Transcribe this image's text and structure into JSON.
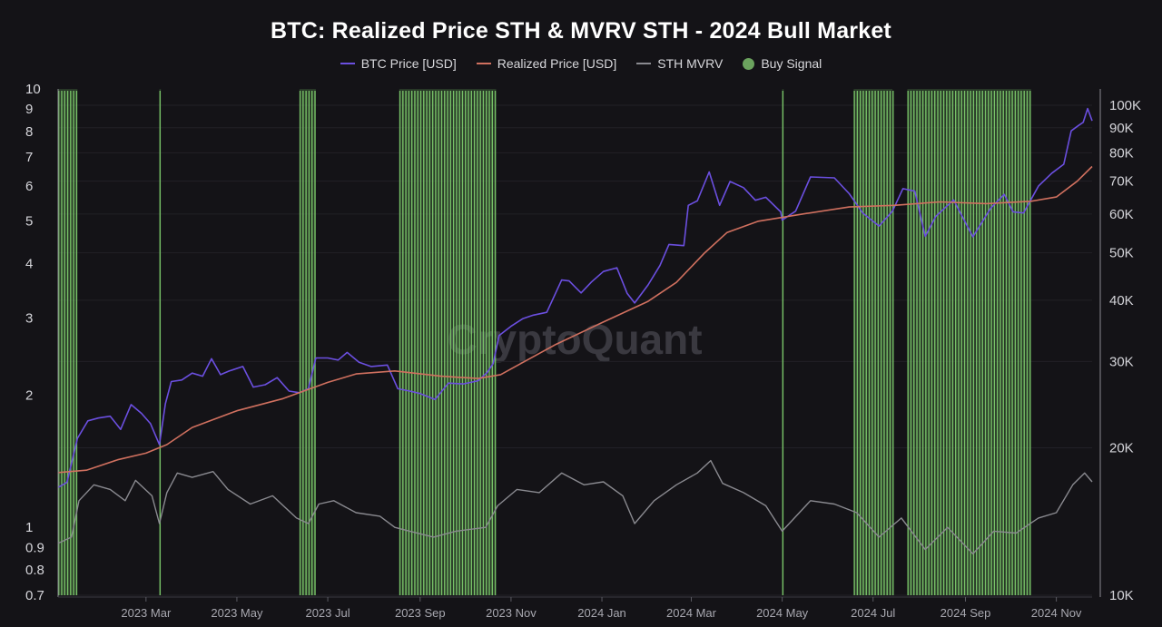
{
  "chart_data": {
    "type": "line",
    "title": "BTC: Realized Price STH & MVRV STH - 2024 Bull Market",
    "watermark": "CryptoQuant",
    "legend_position": "top-center",
    "grid": true,
    "legend": [
      {
        "name": "BTC Price [USD]",
        "color": "#6b4fe0",
        "shape": "line"
      },
      {
        "name": "Realized Price [USD]",
        "color": "#d0705f",
        "shape": "line"
      },
      {
        "name": "STH MVRV",
        "color": "#8a8a90",
        "shape": "line"
      },
      {
        "name": "Buy Signal",
        "color": "#6ba35e",
        "shape": "dot"
      }
    ],
    "x_axis": {
      "range": [
        "2023-01-01",
        "2024-11-25"
      ],
      "ticks": [
        {
          "date": "2023-03-01",
          "label": "2023 Mar"
        },
        {
          "date": "2023-05-01",
          "label": "2023 May"
        },
        {
          "date": "2023-07-01",
          "label": "2023 Jul"
        },
        {
          "date": "2023-09-01",
          "label": "2023 Sep"
        },
        {
          "date": "2023-11-01",
          "label": "2023 Nov"
        },
        {
          "date": "2024-01-01",
          "label": "2024 Jan"
        },
        {
          "date": "2024-03-01",
          "label": "2024 Mar"
        },
        {
          "date": "2024-05-01",
          "label": "2024 May"
        },
        {
          "date": "2024-07-01",
          "label": "2024 Jul"
        },
        {
          "date": "2024-09-01",
          "label": "2024 Sep"
        },
        {
          "date": "2024-11-01",
          "label": "2024 Nov"
        }
      ]
    },
    "y_left": {
      "scale": "log",
      "range": [
        0.7,
        10
      ],
      "ticks": [
        {
          "value": 0.7,
          "label": "0.7"
        },
        {
          "value": 0.8,
          "label": "0.8"
        },
        {
          "value": 0.9,
          "label": "0.9"
        },
        {
          "value": 1,
          "label": "1"
        },
        {
          "value": 2,
          "label": "2"
        },
        {
          "value": 3,
          "label": "3"
        },
        {
          "value": 4,
          "label": "4"
        },
        {
          "value": 5,
          "label": "5"
        },
        {
          "value": 6,
          "label": "6"
        },
        {
          "value": 7,
          "label": "7"
        },
        {
          "value": 8,
          "label": "8"
        },
        {
          "value": 9,
          "label": "9"
        },
        {
          "value": 10,
          "label": "10"
        }
      ]
    },
    "y_right": {
      "scale": "log",
      "range": [
        10000,
        108000
      ],
      "ticks": [
        {
          "value": 10000,
          "label": "10K"
        },
        {
          "value": 20000,
          "label": "20K"
        },
        {
          "value": 30000,
          "label": "30K"
        },
        {
          "value": 40000,
          "label": "40K"
        },
        {
          "value": 50000,
          "label": "50K"
        },
        {
          "value": 60000,
          "label": "60K"
        },
        {
          "value": 70000,
          "label": "70K"
        },
        {
          "value": 80000,
          "label": "80K"
        },
        {
          "value": 90000,
          "label": "90K"
        },
        {
          "value": 100000,
          "label": "100K"
        }
      ]
    },
    "series": [
      {
        "name": "BTC Price [USD]",
        "axis": "right",
        "color": "#6b4fe0",
        "points": [
          [
            "2023-01-01",
            16600
          ],
          [
            "2023-01-07",
            17000
          ],
          [
            "2023-01-14",
            20900
          ],
          [
            "2023-01-21",
            22700
          ],
          [
            "2023-01-28",
            23000
          ],
          [
            "2023-02-05",
            23200
          ],
          [
            "2023-02-12",
            21800
          ],
          [
            "2023-02-19",
            24500
          ],
          [
            "2023-02-26",
            23500
          ],
          [
            "2023-03-04",
            22400
          ],
          [
            "2023-03-10",
            20300
          ],
          [
            "2023-03-14",
            24600
          ],
          [
            "2023-03-18",
            27300
          ],
          [
            "2023-03-25",
            27500
          ],
          [
            "2023-04-01",
            28400
          ],
          [
            "2023-04-08",
            28000
          ],
          [
            "2023-04-14",
            30400
          ],
          [
            "2023-04-20",
            28200
          ],
          [
            "2023-04-26",
            28700
          ],
          [
            "2023-05-05",
            29300
          ],
          [
            "2023-05-12",
            26600
          ],
          [
            "2023-05-20",
            26900
          ],
          [
            "2023-05-28",
            27800
          ],
          [
            "2023-06-05",
            26100
          ],
          [
            "2023-06-12",
            25900
          ],
          [
            "2023-06-18",
            26400
          ],
          [
            "2023-06-23",
            30500
          ],
          [
            "2023-07-01",
            30500
          ],
          [
            "2023-07-08",
            30200
          ],
          [
            "2023-07-14",
            31300
          ],
          [
            "2023-07-22",
            29900
          ],
          [
            "2023-07-30",
            29300
          ],
          [
            "2023-08-10",
            29500
          ],
          [
            "2023-08-17",
            26400
          ],
          [
            "2023-08-25",
            26100
          ],
          [
            "2023-09-01",
            25800
          ],
          [
            "2023-09-11",
            25100
          ],
          [
            "2023-09-20",
            27100
          ],
          [
            "2023-09-30",
            27000
          ],
          [
            "2023-10-10",
            27400
          ],
          [
            "2023-10-16",
            28500
          ],
          [
            "2023-10-20",
            29700
          ],
          [
            "2023-10-24",
            33900
          ],
          [
            "2023-11-01",
            35400
          ],
          [
            "2023-11-09",
            36700
          ],
          [
            "2023-11-16",
            37300
          ],
          [
            "2023-11-25",
            37800
          ],
          [
            "2023-12-05",
            44000
          ],
          [
            "2023-12-10",
            43800
          ],
          [
            "2023-12-18",
            41400
          ],
          [
            "2023-12-25",
            43600
          ],
          [
            "2024-01-02",
            45800
          ],
          [
            "2024-01-11",
            46600
          ],
          [
            "2024-01-18",
            41300
          ],
          [
            "2024-01-23",
            39500
          ],
          [
            "2024-02-01",
            43000
          ],
          [
            "2024-02-09",
            47100
          ],
          [
            "2024-02-15",
            52000
          ],
          [
            "2024-02-25",
            51700
          ],
          [
            "2024-02-28",
            62500
          ],
          [
            "2024-03-05",
            63800
          ],
          [
            "2024-03-13",
            73100
          ],
          [
            "2024-03-20",
            62500
          ],
          [
            "2024-03-27",
            69900
          ],
          [
            "2024-04-05",
            67900
          ],
          [
            "2024-04-13",
            64000
          ],
          [
            "2024-04-20",
            64900
          ],
          [
            "2024-04-30",
            60600
          ],
          [
            "2024-05-01",
            58300
          ],
          [
            "2024-05-10",
            60800
          ],
          [
            "2024-05-20",
            71400
          ],
          [
            "2024-06-05",
            71100
          ],
          [
            "2024-06-15",
            66000
          ],
          [
            "2024-06-24",
            60300
          ],
          [
            "2024-07-05",
            56700
          ],
          [
            "2024-07-14",
            60800
          ],
          [
            "2024-07-21",
            67600
          ],
          [
            "2024-07-29",
            66800
          ],
          [
            "2024-08-05",
            54000
          ],
          [
            "2024-08-12",
            59300
          ],
          [
            "2024-08-24",
            64100
          ],
          [
            "2024-09-06",
            53900
          ],
          [
            "2024-09-18",
            61700
          ],
          [
            "2024-09-27",
            65800
          ],
          [
            "2024-10-03",
            60600
          ],
          [
            "2024-10-10",
            60300
          ],
          [
            "2024-10-20",
            68400
          ],
          [
            "2024-10-29",
            72700
          ],
          [
            "2024-11-06",
            75800
          ],
          [
            "2024-11-11",
            88700
          ],
          [
            "2024-11-16",
            91000
          ],
          [
            "2024-11-19",
            92300
          ],
          [
            "2024-11-22",
            98500
          ],
          [
            "2024-11-25",
            93000
          ]
        ]
      },
      {
        "name": "Realized Price [USD]",
        "axis": "right",
        "color": "#d0705f",
        "points": [
          [
            "2023-01-01",
            17800
          ],
          [
            "2023-01-20",
            18000
          ],
          [
            "2023-02-10",
            18900
          ],
          [
            "2023-03-01",
            19500
          ],
          [
            "2023-03-15",
            20300
          ],
          [
            "2023-04-01",
            22000
          ],
          [
            "2023-05-01",
            23800
          ],
          [
            "2023-06-01",
            25200
          ],
          [
            "2023-07-01",
            27200
          ],
          [
            "2023-07-20",
            28300
          ],
          [
            "2023-08-15",
            28700
          ],
          [
            "2023-09-15",
            28000
          ],
          [
            "2023-10-10",
            27700
          ],
          [
            "2023-10-25",
            28200
          ],
          [
            "2023-11-10",
            30000
          ],
          [
            "2023-12-01",
            32500
          ],
          [
            "2024-01-01",
            36000
          ],
          [
            "2024-02-01",
            39800
          ],
          [
            "2024-02-20",
            43500
          ],
          [
            "2024-03-10",
            50000
          ],
          [
            "2024-03-25",
            55000
          ],
          [
            "2024-04-15",
            58000
          ],
          [
            "2024-05-15",
            60000
          ],
          [
            "2024-06-15",
            62000
          ],
          [
            "2024-07-15",
            62500
          ],
          [
            "2024-08-15",
            63500
          ],
          [
            "2024-09-15",
            63000
          ],
          [
            "2024-10-15",
            63700
          ],
          [
            "2024-11-01",
            65000
          ],
          [
            "2024-11-15",
            70000
          ],
          [
            "2024-11-25",
            75000
          ]
        ]
      },
      {
        "name": "STH MVRV",
        "axis": "left",
        "color": "#8a8a90",
        "points": [
          [
            "2023-01-01",
            0.92
          ],
          [
            "2023-01-10",
            0.95
          ],
          [
            "2023-01-15",
            1.15
          ],
          [
            "2023-01-25",
            1.25
          ],
          [
            "2023-02-05",
            1.22
          ],
          [
            "2023-02-15",
            1.15
          ],
          [
            "2023-02-22",
            1.28
          ],
          [
            "2023-03-05",
            1.18
          ],
          [
            "2023-03-10",
            1.02
          ],
          [
            "2023-03-15",
            1.2
          ],
          [
            "2023-03-22",
            1.33
          ],
          [
            "2023-04-01",
            1.3
          ],
          [
            "2023-04-15",
            1.34
          ],
          [
            "2023-04-25",
            1.22
          ],
          [
            "2023-05-10",
            1.13
          ],
          [
            "2023-05-25",
            1.18
          ],
          [
            "2023-06-10",
            1.05
          ],
          [
            "2023-06-18",
            1.02
          ],
          [
            "2023-06-25",
            1.13
          ],
          [
            "2023-07-05",
            1.15
          ],
          [
            "2023-07-20",
            1.08
          ],
          [
            "2023-08-05",
            1.06
          ],
          [
            "2023-08-15",
            1.0
          ],
          [
            "2023-08-25",
            0.98
          ],
          [
            "2023-09-10",
            0.95
          ],
          [
            "2023-09-25",
            0.98
          ],
          [
            "2023-10-15",
            1.0
          ],
          [
            "2023-10-23",
            1.12
          ],
          [
            "2023-11-05",
            1.22
          ],
          [
            "2023-11-20",
            1.2
          ],
          [
            "2023-12-05",
            1.33
          ],
          [
            "2023-12-20",
            1.25
          ],
          [
            "2024-01-02",
            1.27
          ],
          [
            "2024-01-15",
            1.18
          ],
          [
            "2024-01-23",
            1.02
          ],
          [
            "2024-02-05",
            1.15
          ],
          [
            "2024-02-20",
            1.25
          ],
          [
            "2024-03-05",
            1.33
          ],
          [
            "2024-03-14",
            1.42
          ],
          [
            "2024-03-22",
            1.26
          ],
          [
            "2024-04-05",
            1.2
          ],
          [
            "2024-04-20",
            1.12
          ],
          [
            "2024-05-01",
            0.98
          ],
          [
            "2024-05-20",
            1.15
          ],
          [
            "2024-06-05",
            1.13
          ],
          [
            "2024-06-20",
            1.08
          ],
          [
            "2024-07-05",
            0.95
          ],
          [
            "2024-07-20",
            1.05
          ],
          [
            "2024-08-05",
            0.89
          ],
          [
            "2024-08-20",
            1.0
          ],
          [
            "2024-09-06",
            0.87
          ],
          [
            "2024-09-20",
            0.98
          ],
          [
            "2024-10-05",
            0.97
          ],
          [
            "2024-10-20",
            1.05
          ],
          [
            "2024-11-01",
            1.08
          ],
          [
            "2024-11-12",
            1.25
          ],
          [
            "2024-11-20",
            1.33
          ],
          [
            "2024-11-25",
            1.27
          ]
        ]
      }
    ],
    "buy_signal_periods": [
      [
        "2023-01-01",
        "2023-01-14"
      ],
      [
        "2023-03-10",
        "2023-03-11"
      ],
      [
        "2023-06-12",
        "2023-06-23"
      ],
      [
        "2023-08-18",
        "2023-10-22"
      ],
      [
        "2024-05-01",
        "2024-05-02"
      ],
      [
        "2024-06-18",
        "2024-07-14"
      ],
      [
        "2024-07-24",
        "2024-10-15"
      ]
    ]
  }
}
